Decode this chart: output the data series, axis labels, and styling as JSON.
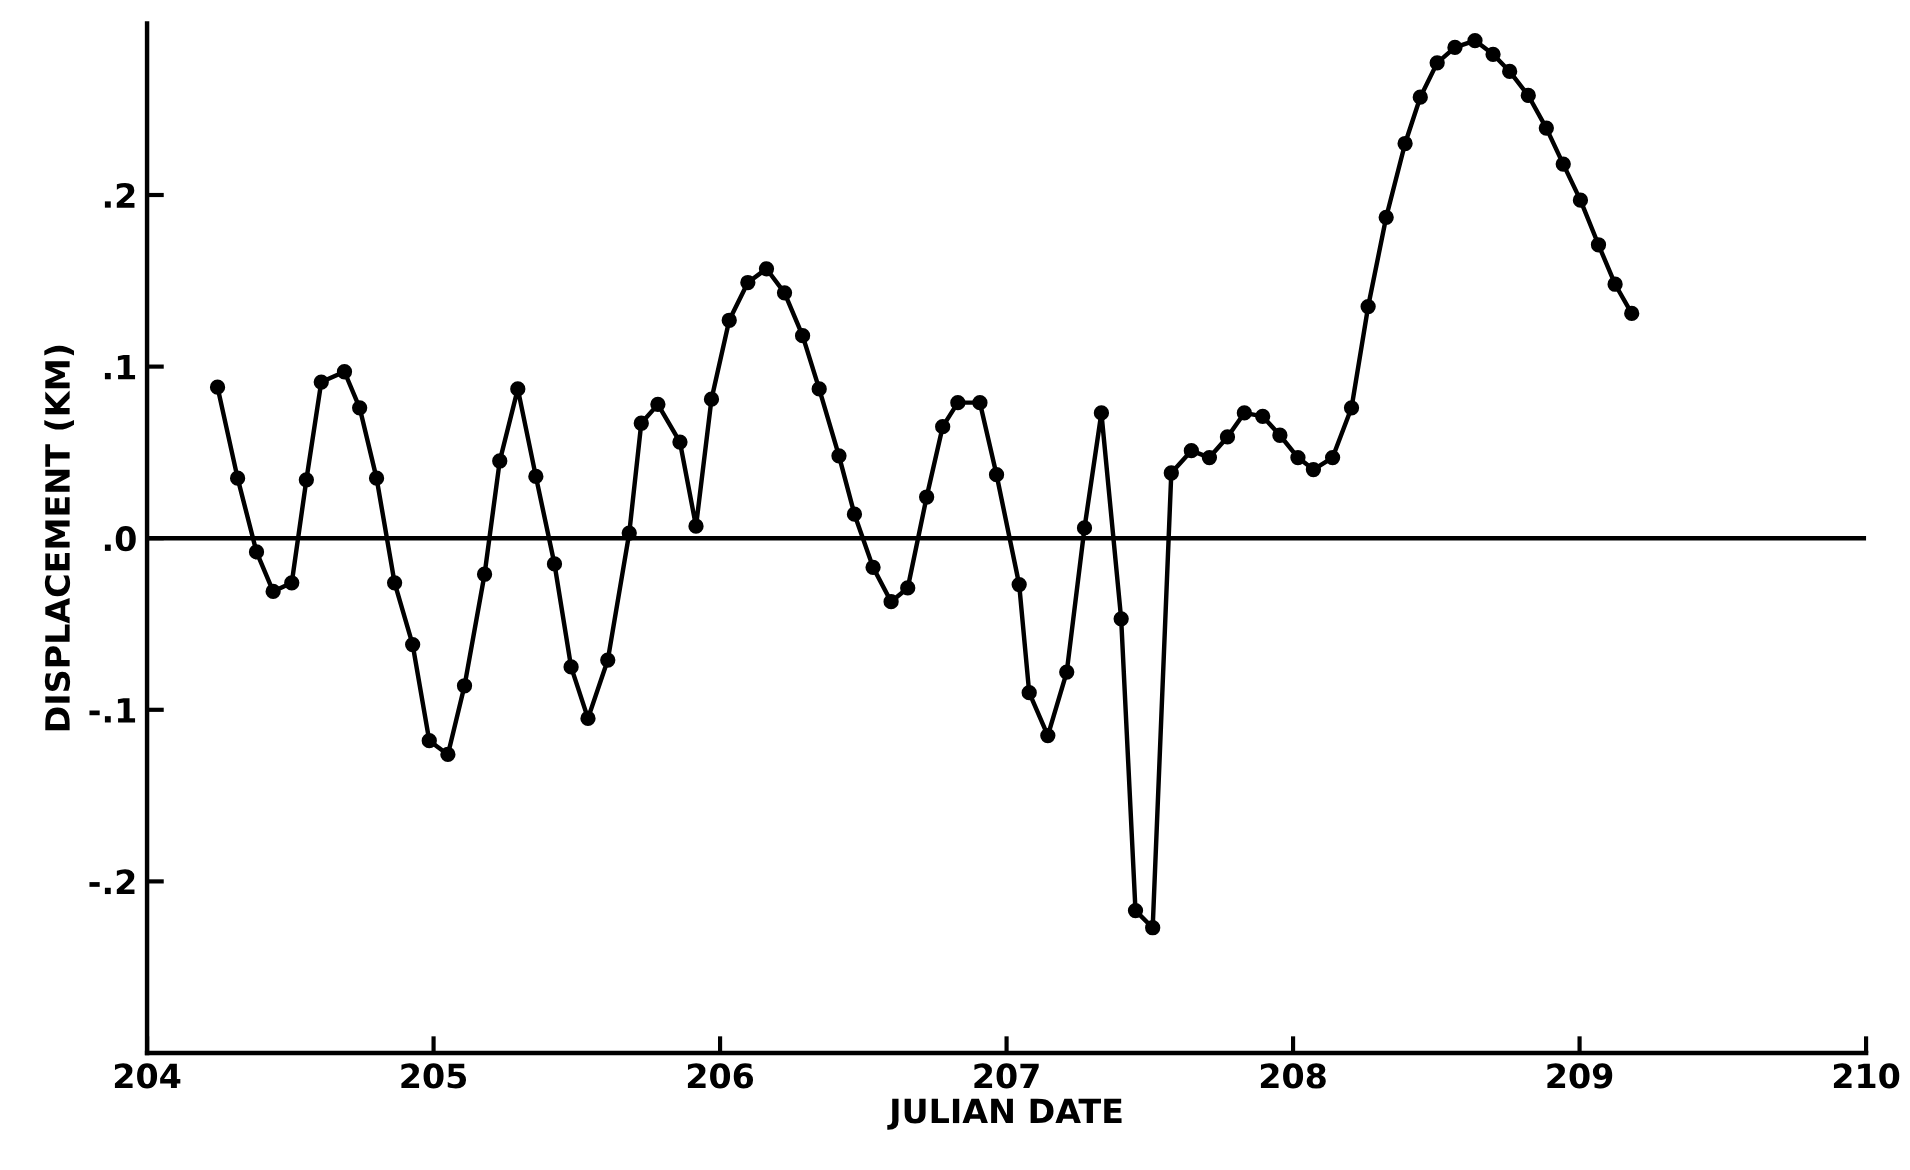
{
  "chart_data": {
    "type": "line",
    "xlabel": "JULIAN DATE",
    "ylabel": "DISPLACEMENT (KM)",
    "xlim": [
      204,
      210
    ],
    "xticks": [
      204,
      205,
      206,
      207,
      208,
      209,
      210
    ],
    "ylim": [
      -0.3,
      0.3
    ],
    "yticks": [
      {
        "value": -0.2,
        "label": "-.2"
      },
      {
        "value": -0.1,
        "label": "-.1"
      },
      {
        "value": 0,
        "label": ".0"
      },
      {
        "value": 0.1,
        "label": ".1"
      },
      {
        "value": 0.2,
        "label": ".2"
      }
    ],
    "grid": false,
    "legend": false,
    "marker": "circle",
    "line_style": "solid",
    "ref_lines": [
      {
        "axis": "y",
        "value": 0,
        "color": "#000000",
        "line_style": "solid"
      }
    ],
    "series": [
      {
        "color": "#000000",
        "x": [
          204.246,
          204.316,
          204.382,
          204.44,
          204.505,
          204.556,
          204.608,
          204.689,
          204.742,
          204.801,
          204.864,
          204.927,
          204.985,
          205.05,
          205.108,
          205.178,
          205.231,
          205.294,
          205.357,
          205.422,
          205.48,
          205.539,
          205.608,
          205.683,
          205.725,
          205.783,
          205.86,
          205.916,
          205.97,
          206.032,
          206.097,
          206.162,
          206.225,
          206.288,
          206.346,
          206.415,
          206.469,
          206.534,
          206.597,
          206.655,
          206.721,
          206.777,
          206.83,
          206.907,
          206.965,
          207.044,
          207.079,
          207.144,
          207.21,
          207.272,
          207.331,
          207.4,
          207.45,
          207.51,
          207.575,
          207.645,
          207.708,
          207.771,
          207.83,
          207.894,
          207.954,
          208.017,
          208.071,
          208.138,
          208.204,
          208.262,
          208.325,
          208.391,
          208.444,
          208.503,
          208.565,
          208.635,
          208.698,
          208.756,
          208.821,
          208.884,
          208.943,
          209.003,
          209.066,
          209.124,
          209.182
        ],
        "values": [
          0.088,
          0.035,
          -0.008,
          -0.031,
          -0.026,
          0.034,
          0.091,
          0.097,
          0.076,
          0.035,
          -0.026,
          -0.062,
          -0.118,
          -0.126,
          -0.086,
          -0.021,
          0.045,
          0.087,
          0.036,
          -0.015,
          -0.075,
          -0.105,
          -0.071,
          0.003,
          0.067,
          0.078,
          0.056,
          0.007,
          0.081,
          0.127,
          0.149,
          0.157,
          0.143,
          0.118,
          0.087,
          0.048,
          0.014,
          -0.017,
          -0.037,
          -0.029,
          0.024,
          0.065,
          0.079,
          0.079,
          0.037,
          -0.027,
          -0.09,
          -0.115,
          -0.078,
          0.006,
          0.073,
          -0.047,
          -0.217,
          -0.227,
          0.038,
          0.051,
          0.047,
          0.059,
          0.073,
          0.071,
          0.06,
          0.047,
          0.04,
          0.047,
          0.076,
          0.135,
          0.187,
          0.23,
          0.257,
          0.277,
          0.286,
          0.29,
          0.282,
          0.272,
          0.258,
          0.239,
          0.218,
          0.197,
          0.171,
          0.148,
          0.131
        ]
      }
    ]
  }
}
